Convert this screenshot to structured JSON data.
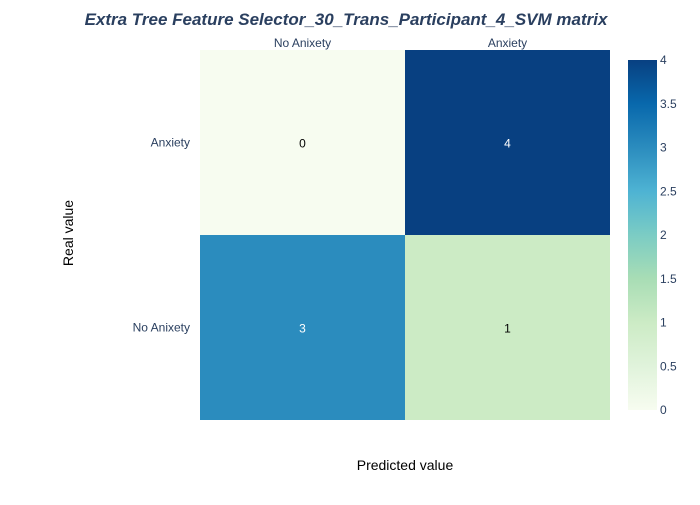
{
  "chart_data": {
    "type": "heatmap",
    "title": "Extra Tree Feature Selector_30_Trans_Participant_4_SVM matrix",
    "xlabel": "Predicted value",
    "ylabel": "Real value",
    "x_categories": [
      "No Anixety",
      "Anxiety"
    ],
    "y_categories": [
      "Anxiety",
      "No Anixety"
    ],
    "z": [
      [
        0,
        4
      ],
      [
        3,
        1
      ]
    ],
    "colorscale": "GnBu",
    "zmin": 0,
    "zmax": 4,
    "colorbar_ticks": [
      "0",
      "0.5",
      "1",
      "1.5",
      "2",
      "2.5",
      "3",
      "3.5",
      "4"
    ]
  }
}
